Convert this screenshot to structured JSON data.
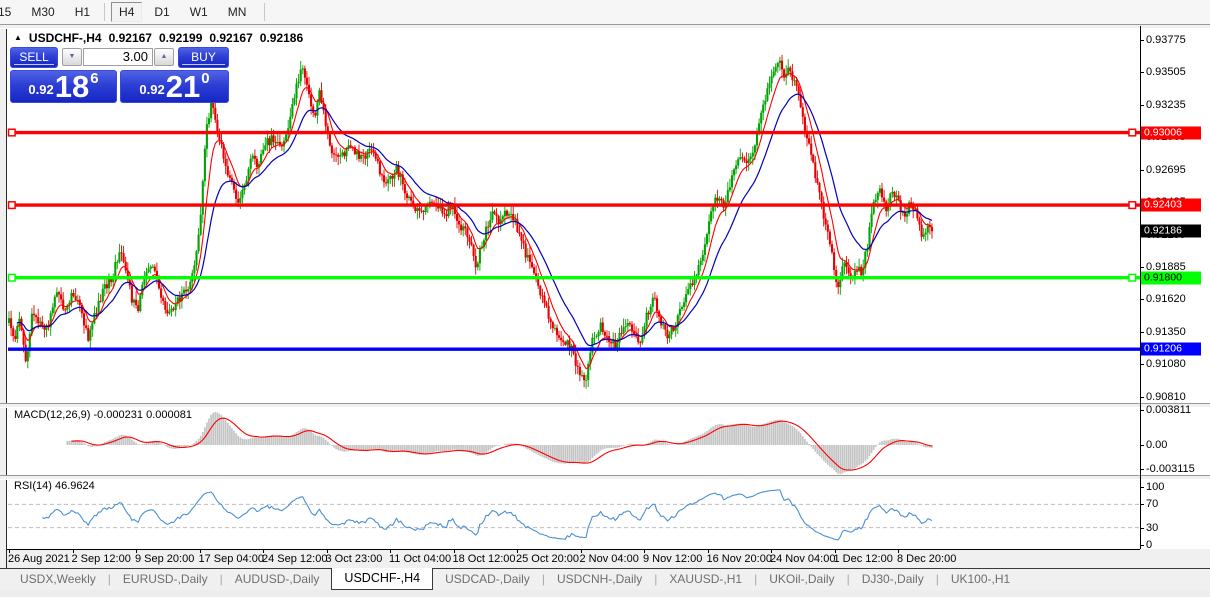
{
  "toolbar": {
    "timeframes": [
      {
        "label": "15",
        "active": false
      },
      {
        "label": "M30",
        "active": false
      },
      {
        "label": "H1",
        "active": false
      },
      {
        "label": "H4",
        "active": true
      },
      {
        "label": "D1",
        "active": false
      },
      {
        "label": "W1",
        "active": false
      },
      {
        "label": "MN",
        "active": false
      }
    ]
  },
  "chart": {
    "collapse_icon": "▲",
    "title": "USDCHF-,H4",
    "ohlc": {
      "open": "0.92167",
      "high": "0.92199",
      "low": "0.92167",
      "close": "0.92186"
    },
    "trade_panel": {
      "sell_label": "SELL",
      "buy_label": "BUY",
      "volume": "3.00",
      "spin_down_icon": "▼",
      "spin_up_icon": "▲",
      "sell_price": {
        "base": "0.92",
        "big": "18",
        "sup": "6"
      },
      "buy_price": {
        "base": "0.92",
        "big": "21",
        "sup": "0"
      }
    },
    "axis_labels": [
      "0.93775",
      "0.93505",
      "0.93235",
      "0.92965",
      "0.92695",
      "0.92425",
      "0.92155",
      "0.91885",
      "0.91620",
      "0.91350",
      "0.91080",
      "0.90810"
    ],
    "current_price": {
      "label": "0.92186",
      "price": 0.92186,
      "bg": "#000000",
      "text": "#ffffff"
    }
  },
  "chart_data": {
    "type": "candlestick",
    "symbol": "USDCHF-",
    "timeframe": "H4",
    "bars": 444,
    "price_axis_range": {
      "top": 0.93891,
      "bottom": 0.90759
    },
    "bull_color": "#00a400",
    "bear_color": "#e60000",
    "ma_fast_color": "#ff0000",
    "ma_slow_color": "#0000bb",
    "hlines": [
      {
        "price": 0.93006,
        "label": "0.93006",
        "color": "#ff0000",
        "text_color": "#ffffff",
        "handles": true
      },
      {
        "price": 0.92403,
        "label": "0.92403",
        "color": "#ff0000",
        "text_color": "#ffffff",
        "handles": true
      },
      {
        "price": 0.918,
        "label": "0.91800",
        "color": "#00ff00",
        "text_color": "#000000",
        "handles": true
      },
      {
        "price": 0.91206,
        "label": "0.91206",
        "color": "#0000ff",
        "text_color": "#ffffff",
        "handles": false
      }
    ],
    "close_path_anchors": [
      [
        8,
        0.9152
      ],
      [
        14,
        0.9125
      ],
      [
        20,
        0.9147
      ],
      [
        26,
        0.9108
      ],
      [
        32,
        0.9152
      ],
      [
        40,
        0.9143
      ],
      [
        48,
        0.9136
      ],
      [
        56,
        0.917
      ],
      [
        64,
        0.9155
      ],
      [
        72,
        0.9165
      ],
      [
        80,
        0.9158
      ],
      [
        88,
        0.9128
      ],
      [
        96,
        0.9152
      ],
      [
        104,
        0.9172
      ],
      [
        112,
        0.918
      ],
      [
        120,
        0.9205
      ],
      [
        126,
        0.9185
      ],
      [
        132,
        0.9162
      ],
      [
        138,
        0.9152
      ],
      [
        144,
        0.918
      ],
      [
        152,
        0.9192
      ],
      [
        158,
        0.9172
      ],
      [
        164,
        0.9155
      ],
      [
        170,
        0.9148
      ],
      [
        178,
        0.9162
      ],
      [
        186,
        0.917
      ],
      [
        194,
        0.9185
      ],
      [
        200,
        0.9225
      ],
      [
        206,
        0.93
      ],
      [
        212,
        0.9328
      ],
      [
        218,
        0.93
      ],
      [
        224,
        0.928
      ],
      [
        230,
        0.9262
      ],
      [
        238,
        0.9245
      ],
      [
        246,
        0.9258
      ],
      [
        252,
        0.9285
      ],
      [
        258,
        0.9272
      ],
      [
        264,
        0.929
      ],
      [
        272,
        0.9295
      ],
      [
        280,
        0.9288
      ],
      [
        288,
        0.93
      ],
      [
        296,
        0.9338
      ],
      [
        302,
        0.9358
      ],
      [
        308,
        0.934
      ],
      [
        314,
        0.9312
      ],
      [
        320,
        0.9335
      ],
      [
        326,
        0.9308
      ],
      [
        332,
        0.9285
      ],
      [
        340,
        0.9278
      ],
      [
        348,
        0.929
      ],
      [
        356,
        0.9284
      ],
      [
        364,
        0.9278
      ],
      [
        372,
        0.929
      ],
      [
        380,
        0.9268
      ],
      [
        388,
        0.9258
      ],
      [
        396,
        0.9272
      ],
      [
        404,
        0.9255
      ],
      [
        412,
        0.924
      ],
      [
        420,
        0.9234
      ],
      [
        428,
        0.9242
      ],
      [
        436,
        0.9244
      ],
      [
        444,
        0.9232
      ],
      [
        452,
        0.924
      ],
      [
        460,
        0.9224
      ],
      [
        468,
        0.9216
      ],
      [
        476,
        0.919
      ],
      [
        484,
        0.9214
      ],
      [
        492,
        0.9236
      ],
      [
        500,
        0.9226
      ],
      [
        508,
        0.9236
      ],
      [
        516,
        0.9224
      ],
      [
        524,
        0.9204
      ],
      [
        532,
        0.9186
      ],
      [
        540,
        0.9168
      ],
      [
        548,
        0.915
      ],
      [
        556,
        0.9136
      ],
      [
        564,
        0.9128
      ],
      [
        572,
        0.912
      ],
      [
        580,
        0.9098
      ],
      [
        586,
        0.9092
      ],
      [
        592,
        0.9128
      ],
      [
        600,
        0.914
      ],
      [
        608,
        0.913
      ],
      [
        616,
        0.9122
      ],
      [
        624,
        0.9142
      ],
      [
        632,
        0.9136
      ],
      [
        640,
        0.9128
      ],
      [
        648,
        0.9152
      ],
      [
        654,
        0.9164
      ],
      [
        660,
        0.9146
      ],
      [
        668,
        0.9132
      ],
      [
        676,
        0.9142
      ],
      [
        684,
        0.9162
      ],
      [
        692,
        0.9174
      ],
      [
        700,
        0.9192
      ],
      [
        708,
        0.9222
      ],
      [
        716,
        0.9248
      ],
      [
        724,
        0.924
      ],
      [
        732,
        0.9264
      ],
      [
        740,
        0.9278
      ],
      [
        748,
        0.9274
      ],
      [
        755,
        0.9292
      ],
      [
        762,
        0.9322
      ],
      [
        770,
        0.9342
      ],
      [
        778,
        0.9362
      ],
      [
        784,
        0.9346
      ],
      [
        790,
        0.9354
      ],
      [
        796,
        0.9338
      ],
      [
        802,
        0.9318
      ],
      [
        808,
        0.9292
      ],
      [
        814,
        0.927
      ],
      [
        820,
        0.9248
      ],
      [
        826,
        0.9222
      ],
      [
        832,
        0.92
      ],
      [
        838,
        0.9168
      ],
      [
        844,
        0.9196
      ],
      [
        850,
        0.9178
      ],
      [
        856,
        0.919
      ],
      [
        862,
        0.9184
      ],
      [
        868,
        0.921
      ],
      [
        874,
        0.9244
      ],
      [
        880,
        0.9254
      ],
      [
        886,
        0.9238
      ],
      [
        892,
        0.925
      ],
      [
        898,
        0.9244
      ],
      [
        904,
        0.9228
      ],
      [
        910,
        0.9242
      ],
      [
        916,
        0.9234
      ],
      [
        922,
        0.9214
      ],
      [
        928,
        0.9222
      ],
      [
        932,
        0.92186
      ]
    ],
    "indicators": [
      {
        "name": "MACD",
        "params": "12,26,9",
        "display": "MACD(12,26,9) -0.000231 0.000081",
        "axis": [
          "0.003811",
          "0.00",
          "-0.003115"
        ],
        "histogram_color": "#c4c4c4",
        "signal_color": "#ff0000"
      },
      {
        "name": "RSI",
        "params": "14",
        "display": "RSI(14) 46.9624",
        "axis": [
          "100",
          "70",
          "30",
          "0"
        ],
        "levels": [
          70,
          30
        ],
        "line_color": "#4a8fd4"
      }
    ]
  },
  "time_axis": {
    "labels": [
      "26 Aug 2021",
      "2 Sep 12:00",
      "9 Sep 20:00",
      "17 Sep 04:00",
      "24 Sep 12:00",
      "3 Oct 23:00",
      "11 Oct 04:00",
      "18 Oct 12:00",
      "25 Oct 20:00",
      "2 Nov 04:00",
      "9 Nov 12:00",
      "16 Nov 20:00",
      "24 Nov 04:00",
      "1 Dec 12:00",
      "8 Dec 20:00"
    ]
  },
  "tabs": [
    {
      "label": "USDX,Weekly",
      "active": false
    },
    {
      "label": "EURUSD-,Daily",
      "active": false
    },
    {
      "label": "AUDUSD-,Daily",
      "active": false
    },
    {
      "label": "USDCHF-,H4",
      "active": true
    },
    {
      "label": "USDCAD-,Daily",
      "active": false
    },
    {
      "label": "USDCNH-,Daily",
      "active": false
    },
    {
      "label": "XAUUSD-,H1",
      "active": false
    },
    {
      "label": "UKOil-,Daily",
      "active": false
    },
    {
      "label": "DJ30-,Daily",
      "active": false
    },
    {
      "label": "UK100-,H1",
      "active": false
    }
  ]
}
